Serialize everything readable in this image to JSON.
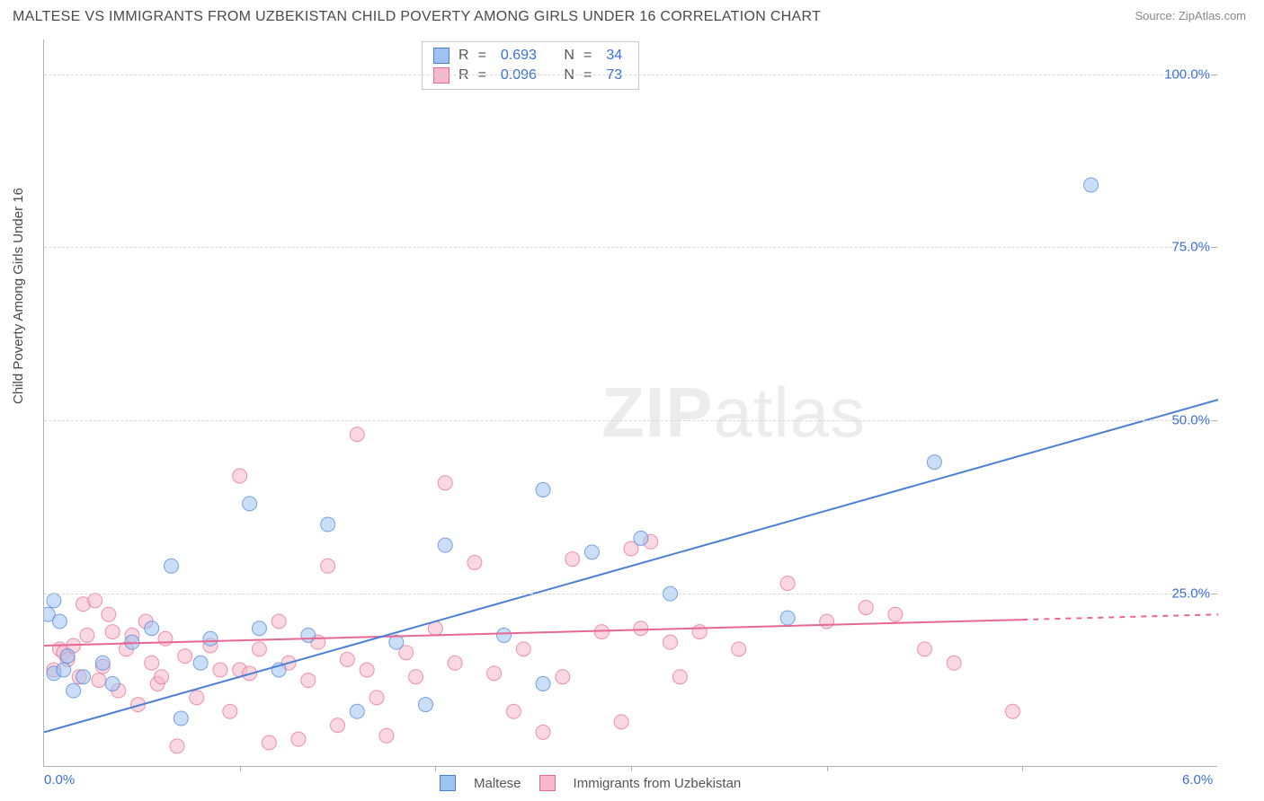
{
  "title": "MALTESE VS IMMIGRANTS FROM UZBEKISTAN CHILD POVERTY AMONG GIRLS UNDER 16 CORRELATION CHART",
  "source": "Source: ZipAtlas.com",
  "y_axis_label": "Child Poverty Among Girls Under 16",
  "watermark_bold": "ZIP",
  "watermark_rest": "atlas",
  "chart": {
    "type": "scatter",
    "xlim": [
      0.0,
      6.0
    ],
    "ylim": [
      0.0,
      105.0
    ],
    "x_ticks": [
      0.0,
      6.0
    ],
    "x_tick_labels": [
      "0.0%",
      "6.0%"
    ],
    "x_minor_ticks": [
      1.0,
      2.0,
      3.0,
      4.0,
      5.0
    ],
    "y_ticks": [
      25.0,
      50.0,
      75.0,
      100.0
    ],
    "y_tick_labels": [
      "25.0%",
      "50.0%",
      "75.0%",
      "100.0%"
    ],
    "background_color": "#ffffff",
    "grid_color": "#d8d8d8",
    "axis_color": "#b0b0b0",
    "tick_label_color": "#3b6fd6",
    "marker_radius": 8,
    "marker_opacity": 0.55,
    "line_width": 2
  },
  "series": {
    "maltese": {
      "label": "Maltese",
      "color_fill": "#9fc3f0",
      "color_stroke": "#4a7fd8",
      "r_value": "0.693",
      "n_value": "34",
      "trend": {
        "x1": 0.0,
        "y1": 5.0,
        "x2": 6.0,
        "y2": 53.0,
        "dash_after_x": null
      },
      "points": [
        [
          0.02,
          22.0
        ],
        [
          0.05,
          13.5
        ],
        [
          0.08,
          21.0
        ],
        [
          0.1,
          14.0
        ],
        [
          0.15,
          11.0
        ],
        [
          0.2,
          13.0
        ],
        [
          0.3,
          15.0
        ],
        [
          0.35,
          12.0
        ],
        [
          0.45,
          18.0
        ],
        [
          0.55,
          20.0
        ],
        [
          0.65,
          29.0
        ],
        [
          0.7,
          7.0
        ],
        [
          0.8,
          15.0
        ],
        [
          0.85,
          18.5
        ],
        [
          1.05,
          38.0
        ],
        [
          1.1,
          20.0
        ],
        [
          1.2,
          14.0
        ],
        [
          1.35,
          19.0
        ],
        [
          1.45,
          35.0
        ],
        [
          1.6,
          8.0
        ],
        [
          1.8,
          18.0
        ],
        [
          1.95,
          9.0
        ],
        [
          2.05,
          32.0
        ],
        [
          2.35,
          19.0
        ],
        [
          2.55,
          12.0
        ],
        [
          2.55,
          40.0
        ],
        [
          2.8,
          31.0
        ],
        [
          3.05,
          33.0
        ],
        [
          3.2,
          25.0
        ],
        [
          3.8,
          21.5
        ],
        [
          4.55,
          44.0
        ],
        [
          5.35,
          84.0
        ],
        [
          0.05,
          24.0
        ],
        [
          0.12,
          16.0
        ]
      ]
    },
    "uzbekistan": {
      "label": "Immigrants from Uzbekistan",
      "color_fill": "#f5b8ca",
      "color_stroke": "#e86892",
      "r_value": "0.096",
      "n_value": "73",
      "trend": {
        "x1": 0.0,
        "y1": 17.5,
        "x2": 6.0,
        "y2": 22.0,
        "dash_after_x": 5.0
      },
      "points": [
        [
          0.05,
          14.0
        ],
        [
          0.08,
          17.0
        ],
        [
          0.1,
          16.5
        ],
        [
          0.12,
          15.5
        ],
        [
          0.15,
          17.5
        ],
        [
          0.18,
          13.0
        ],
        [
          0.2,
          23.5
        ],
        [
          0.22,
          19.0
        ],
        [
          0.26,
          24.0
        ],
        [
          0.28,
          12.5
        ],
        [
          0.3,
          14.5
        ],
        [
          0.35,
          19.5
        ],
        [
          0.38,
          11.0
        ],
        [
          0.42,
          17.0
        ],
        [
          0.45,
          19.0
        ],
        [
          0.48,
          9.0
        ],
        [
          0.52,
          21.0
        ],
        [
          0.55,
          15.0
        ],
        [
          0.58,
          12.0
        ],
        [
          0.62,
          18.5
        ],
        [
          0.68,
          3.0
        ],
        [
          0.72,
          16.0
        ],
        [
          0.78,
          10.0
        ],
        [
          0.85,
          17.5
        ],
        [
          0.9,
          14.0
        ],
        [
          0.95,
          8.0
        ],
        [
          1.0,
          14.0
        ],
        [
          1.0,
          42.0
        ],
        [
          1.05,
          13.5
        ],
        [
          1.1,
          17.0
        ],
        [
          1.15,
          3.5
        ],
        [
          1.2,
          21.0
        ],
        [
          1.25,
          15.0
        ],
        [
          1.3,
          4.0
        ],
        [
          1.35,
          12.5
        ],
        [
          1.4,
          18.0
        ],
        [
          1.45,
          29.0
        ],
        [
          1.5,
          6.0
        ],
        [
          1.55,
          15.5
        ],
        [
          1.6,
          48.0
        ],
        [
          1.65,
          14.0
        ],
        [
          1.7,
          10.0
        ],
        [
          1.75,
          4.5
        ],
        [
          1.85,
          16.5
        ],
        [
          1.9,
          13.0
        ],
        [
          2.0,
          20.0
        ],
        [
          2.05,
          41.0
        ],
        [
          2.1,
          15.0
        ],
        [
          2.2,
          29.5
        ],
        [
          2.3,
          13.5
        ],
        [
          2.45,
          17.0
        ],
        [
          2.55,
          5.0
        ],
        [
          2.65,
          13.0
        ],
        [
          2.7,
          30.0
        ],
        [
          2.85,
          19.5
        ],
        [
          2.95,
          6.5
        ],
        [
          3.0,
          31.5
        ],
        [
          3.05,
          20.0
        ],
        [
          3.1,
          32.5
        ],
        [
          3.2,
          18.0
        ],
        [
          3.35,
          19.5
        ],
        [
          3.55,
          17.0
        ],
        [
          3.8,
          26.5
        ],
        [
          4.0,
          21.0
        ],
        [
          4.2,
          23.0
        ],
        [
          4.35,
          22.0
        ],
        [
          4.5,
          17.0
        ],
        [
          4.65,
          15.0
        ],
        [
          4.95,
          8.0
        ],
        [
          3.25,
          13.0
        ],
        [
          2.4,
          8.0
        ],
        [
          0.33,
          22.0
        ],
        [
          0.6,
          13.0
        ]
      ]
    }
  },
  "stats_labels": {
    "r": "R",
    "n": "N",
    "eq": "="
  },
  "legend_bottom": [
    "maltese",
    "uzbekistan"
  ]
}
